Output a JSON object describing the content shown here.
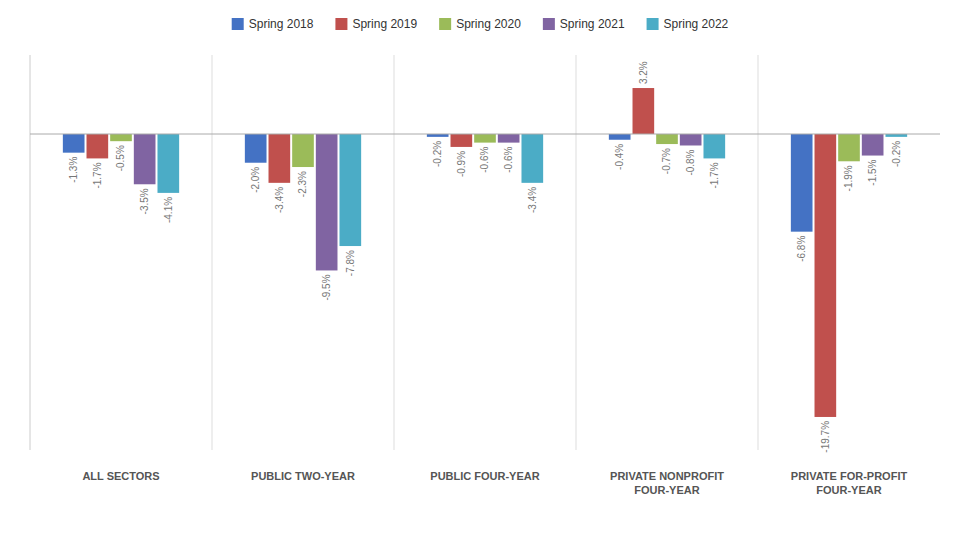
{
  "chart_data": {
    "type": "bar",
    "categories": [
      "ALL SECTORS",
      "PUBLIC TWO-YEAR",
      "PUBLIC FOUR-YEAR",
      "PRIVATE NONPROFIT\nFOUR-YEAR",
      "PRIVATE FOR-PROFIT\nFOUR-YEAR"
    ],
    "series": [
      {
        "name": "Spring 2018",
        "color": "#4472C4",
        "values": [
          -1.3,
          -2.0,
          -0.2,
          -0.4,
          -6.8
        ],
        "value_labels": [
          "-1.3%",
          "-2.0%",
          "-0.2%",
          "-0.4%",
          "-6.8%"
        ]
      },
      {
        "name": "Spring 2019",
        "color": "#C0504D",
        "values": [
          -1.7,
          -3.4,
          -0.9,
          3.2,
          -19.7
        ],
        "value_labels": [
          "-1.7%",
          "-3.4%",
          "-0.9%",
          "3.2%",
          "-19.7%"
        ]
      },
      {
        "name": "Spring 2020",
        "color": "#9BBB59",
        "values": [
          -0.5,
          -2.3,
          -0.6,
          -0.7,
          -1.9
        ],
        "value_labels": [
          "-0.5%",
          "-2.3%",
          "-0.6%",
          "-0.7%",
          "-1.9%"
        ]
      },
      {
        "name": "Spring 2021",
        "color": "#8064A2",
        "values": [
          -3.5,
          -9.5,
          -0.6,
          -0.8,
          -1.5
        ],
        "value_labels": [
          "-3.5%",
          "-9.5%",
          "-0.6%",
          "-0.8%",
          "-1.5%"
        ]
      },
      {
        "name": "Spring 2022",
        "color": "#4BACC6",
        "values": [
          -4.1,
          -7.8,
          -3.4,
          -1.7,
          -0.2
        ],
        "value_labels": [
          "-4.1%",
          "-7.8%",
          "-3.4%",
          "-1.7%",
          "-0.2%"
        ]
      }
    ],
    "ylim": [
      -22,
      5.5
    ],
    "grid": false,
    "legend": "top",
    "data_labels": true,
    "tick_labels": "x"
  }
}
